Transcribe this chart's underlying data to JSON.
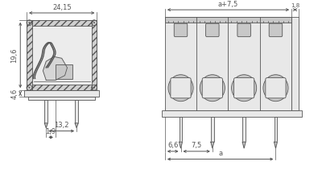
{
  "bg_color": "#ffffff",
  "line_color": "#555555",
  "fill_light": "#e8e8e8",
  "fill_medium": "#c8c8c8",
  "fill_dark": "#aaaaaa",
  "hatch_color": "#888888",
  "dim_color": "#555555",
  "figsize": [
    4.0,
    2.16
  ],
  "dpi": 100,
  "dim_24_15": "24,15",
  "dim_19_6": "19,6",
  "dim_4_6": "4,6",
  "dim_13_2": "13,2",
  "dim_1_9": "1,9",
  "dim_a7_5": "a+7,5",
  "dim_1_8": "1,8",
  "dim_6_6": "6,6",
  "dim_7_5": "7,5",
  "dim_a": "a"
}
